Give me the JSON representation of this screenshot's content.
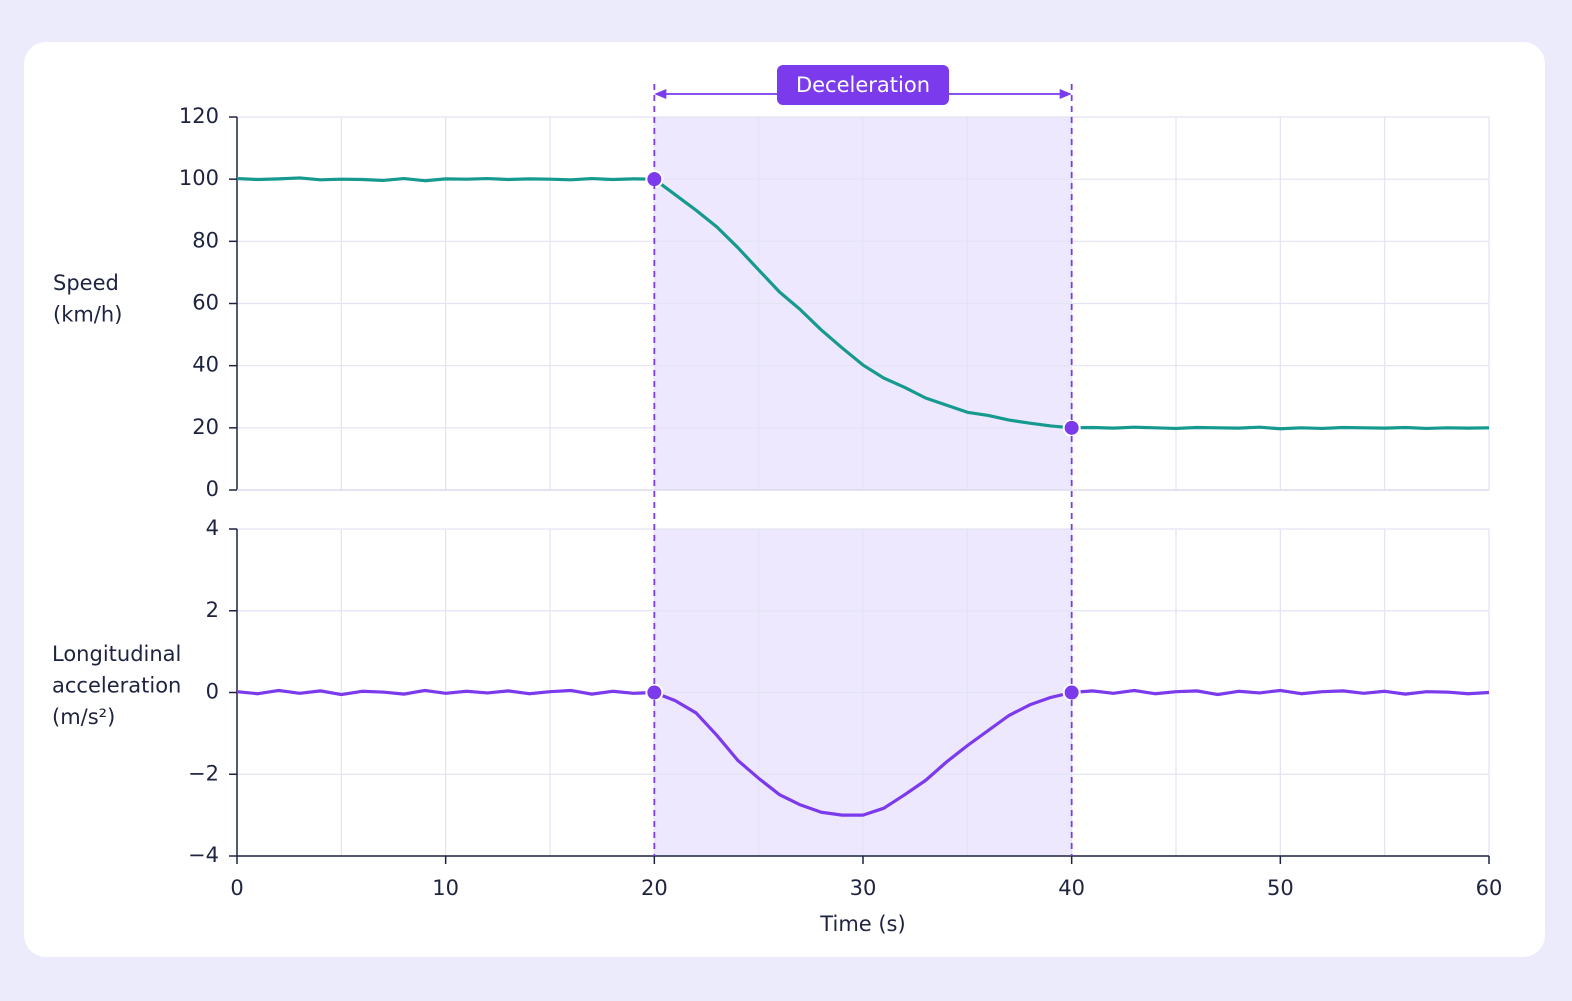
{
  "chart_data": [
    {
      "type": "line",
      "ylabel": [
        "Speed",
        "(km/h)"
      ],
      "color": "#16998f",
      "x": [
        0,
        1,
        2,
        3,
        4,
        5,
        6,
        7,
        8,
        9,
        10,
        11,
        12,
        13,
        14,
        15,
        16,
        17,
        18,
        19,
        20,
        21,
        22,
        23,
        24,
        25,
        26,
        27,
        28,
        29,
        30,
        31,
        32,
        33,
        34,
        35,
        36,
        37,
        38,
        39,
        40,
        41,
        42,
        43,
        44,
        45,
        46,
        47,
        48,
        49,
        50,
        51,
        52,
        53,
        54,
        55,
        56,
        57,
        58,
        59,
        60
      ],
      "values": [
        100.2,
        99.9,
        100.1,
        100.4,
        99.8,
        100,
        99.9,
        99.6,
        100.2,
        99.5,
        100.1,
        100,
        100.2,
        99.9,
        100.1,
        100,
        99.8,
        100.2,
        99.9,
        100.1,
        100,
        95,
        90,
        84.6,
        78,
        70.8,
        63.7,
        58,
        51.5,
        45.7,
        40.2,
        36,
        33,
        29.6,
        27.3,
        25,
        24,
        22.5,
        21.5,
        20.6,
        20,
        20.1,
        19.9,
        20.2,
        20,
        19.8,
        20.1,
        20,
        19.9,
        20.2,
        19.7,
        20,
        19.8,
        20.1,
        20,
        19.9,
        20.1,
        19.8,
        20,
        19.9,
        20
      ],
      "xlim": [
        0,
        60
      ],
      "xgrid": [
        5,
        10,
        15,
        20,
        25,
        30,
        35,
        40,
        45,
        50,
        55,
        60
      ],
      "ylim": [
        0,
        120
      ],
      "yticks": [
        0,
        20,
        40,
        60,
        80,
        100,
        120
      ],
      "highlight": {
        "start": 20,
        "end": 40,
        "label": "Deceleration"
      }
    },
    {
      "type": "line",
      "ylabel": [
        "Longitudinal",
        "acceleration",
        "(m/s²)"
      ],
      "xlabel": "Time (s)",
      "color": "#7c3aed",
      "x": [
        0,
        1,
        2,
        3,
        4,
        5,
        6,
        7,
        8,
        9,
        10,
        11,
        12,
        13,
        14,
        15,
        16,
        17,
        18,
        19,
        20,
        21,
        22,
        23,
        24,
        25,
        26,
        27,
        28,
        29,
        30,
        31,
        32,
        33,
        34,
        35,
        36,
        37,
        38,
        39,
        40,
        41,
        42,
        43,
        44,
        45,
        46,
        47,
        48,
        49,
        50,
        51,
        52,
        53,
        54,
        55,
        56,
        57,
        58,
        59,
        60
      ],
      "values": [
        0.02,
        -0.03,
        0.05,
        -0.02,
        0.04,
        -0.05,
        0.03,
        0.01,
        -0.04,
        0.05,
        -0.02,
        0.03,
        -0.01,
        0.04,
        -0.03,
        0.02,
        0.05,
        -0.04,
        0.03,
        -0.02,
        0,
        -0.2,
        -0.5,
        -1.05,
        -1.66,
        -2.1,
        -2.5,
        -2.75,
        -2.93,
        -3.0,
        -3.0,
        -2.83,
        -2.5,
        -2.15,
        -1.7,
        -1.3,
        -0.93,
        -0.56,
        -0.3,
        -0.12,
        0,
        0.04,
        -0.02,
        0.05,
        -0.03,
        0.02,
        0.04,
        -0.05,
        0.03,
        -0.01,
        0.05,
        -0.03,
        0.02,
        0.04,
        -0.02,
        0.03,
        -0.04,
        0.02,
        0.01,
        -0.03,
        0
      ],
      "xlim": [
        0,
        60
      ],
      "xticks": [
        0,
        10,
        20,
        30,
        40,
        50,
        60
      ],
      "xgrid": [
        5,
        10,
        15,
        20,
        25,
        30,
        35,
        40,
        45,
        50,
        55,
        60
      ],
      "ylim": [
        -4,
        4
      ],
      "yticks": [
        {
          "value": -4,
          "label": "−4"
        },
        {
          "value": -2,
          "label": "−2"
        },
        0,
        2,
        4
      ]
    }
  ]
}
